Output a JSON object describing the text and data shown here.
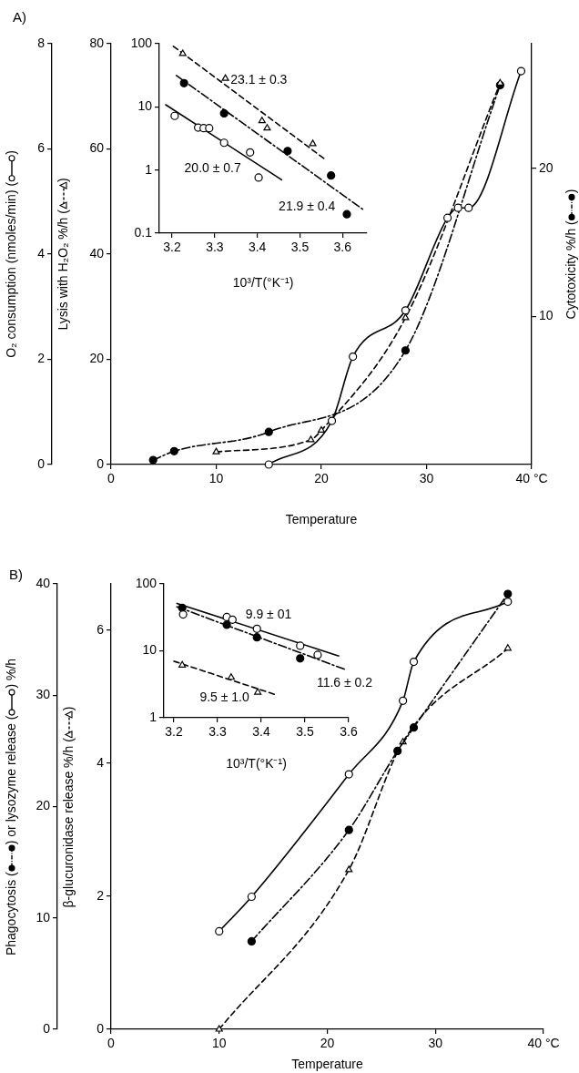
{
  "chart_data": [
    {
      "type": "line",
      "title": "A)",
      "xlabel": "Temperature",
      "ylabel": "Lysis with H₂O₂ %/h ( )",
      "y2label": "Cytotoxicity %/h ( )",
      "y3label": "O₂ consumption (nmoles/min) ( )",
      "xlim": [
        0,
        40
      ],
      "xticks": [
        0,
        10,
        20,
        30,
        {
          "value": 40,
          "label": "40 °C"
        }
      ],
      "ylim": [
        0,
        80
      ],
      "yticks": [
        0,
        20,
        40,
        60,
        80
      ],
      "y2lim": [
        0,
        28.4
      ],
      "y2ticks": [
        10,
        20
      ],
      "y3lim": [
        0,
        8
      ],
      "y3ticks": [
        0,
        2,
        4,
        6,
        8
      ],
      "series": [
        {
          "color": "#000000",
          "colors": [
            "#ffffff",
            "#ffffff",
            "#ffffff",
            "#ffffff",
            "#ffffff",
            "#ffffff",
            "#ffffff",
            "#ffffff"
          ],
          "axis": "y3",
          "marker": "circle",
          "line_style": "solid",
          "x": [
            15,
            21,
            23,
            28,
            32,
            33,
            34,
            39
          ],
          "values": [
            0,
            0.83,
            2.05,
            2.93,
            4.69,
            4.88,
            4.88,
            7.48
          ]
        },
        {
          "color": "#000000",
          "colors": [
            "#ffffff",
            "#ffffff",
            "#ffffff",
            "#ffffff",
            "#ffffff"
          ],
          "axis": "y",
          "marker": "triangle",
          "line_style": "dashed",
          "x": [
            10,
            19,
            20,
            28,
            37
          ],
          "values": [
            2.4,
            4.7,
            6.5,
            27.9,
            72.5
          ]
        },
        {
          "color": "#000000",
          "axis": "y2",
          "marker": "circle",
          "line_style": "dashdot",
          "x": [
            4,
            6,
            15,
            28,
            37
          ],
          "values": [
            0.3,
            0.9,
            2.2,
            7.7,
            25.6
          ]
        }
      ]
    },
    {
      "type": "scatter",
      "xlabel": "10³/T(°K⁻¹)",
      "log": "y",
      "xlim": [
        3.17,
        3.657
      ],
      "xticks": [
        3.2,
        3.3,
        3.4,
        3.5,
        3.6
      ],
      "ylim": [
        0.1,
        100
      ],
      "yticks": [
        0.1,
        1,
        10,
        100
      ],
      "series": [
        {
          "color": "#000000",
          "colors": [
            "#ffffff",
            "#ffffff",
            "#ffffff",
            "#ffffff",
            "#ffffff"
          ],
          "marker": "triangle",
          "x": [
            3.225,
            3.325,
            3.411,
            3.423,
            3.53
          ],
          "values": [
            69.5,
            28.2,
            6,
            4.6,
            2.6
          ]
        },
        {
          "color": "#000000",
          "marker": "circle",
          "x": [
            3.228,
            3.322,
            3.471,
            3.573,
            3.61
          ],
          "values": [
            23.7,
            7.9,
            2,
            0.82,
            0.2
          ]
        },
        {
          "color": "#000000",
          "colors": [
            "#ffffff",
            "#ffffff",
            "#ffffff",
            "#ffffff",
            "#ffffff",
            "#ffffff",
            "#ffffff"
          ],
          "marker": "circle",
          "x": [
            3.206,
            3.261,
            3.274,
            3.287,
            3.322,
            3.383,
            3.403
          ],
          "values": [
            7.2,
            4.7,
            4.6,
            4.6,
            2.7,
            1.9,
            0.76
          ]
        },
        {
          "type": "line",
          "color": "#000000",
          "marker": "none",
          "line_style": "dashed",
          "x": [
            3.203,
            3.56
          ],
          "values": [
            91,
            1.46
          ]
        },
        {
          "type": "line",
          "color": "#000000",
          "marker": "none",
          "line_style": "dashdot",
          "x": [
            3.21,
            3.647
          ],
          "values": [
            31.4,
            0.24
          ]
        },
        {
          "type": "line",
          "color": "#000000",
          "marker": "none",
          "line_style": "solid",
          "x": [
            3.185,
            3.457
          ],
          "values": [
            10.8,
            0.7
          ]
        }
      ],
      "annotations": [
        "23.1 ± 0.3",
        "20.0 ± 0.7",
        "21.9 ± 0.4"
      ]
    },
    {
      "type": "line",
      "title": "B)",
      "xlabel": "Temperature",
      "ylabel": "β-glucuronidase release %/h ( )",
      "y3label": "Phagocytosis ( ) or lysozyme release ( ) %/h",
      "xlim": [
        0,
        40
      ],
      "xticks": [
        0,
        10,
        20,
        30,
        {
          "value": 40,
          "label": "40 °C"
        }
      ],
      "ylim": [
        0,
        6.7
      ],
      "yticks": [
        0,
        2,
        4,
        6
      ],
      "y3lim": [
        0,
        40
      ],
      "y3ticks": [
        0,
        10,
        20,
        30,
        40
      ],
      "series": [
        {
          "color": "#000000",
          "axis": "y3",
          "marker": "circle",
          "line_style": "dashdot",
          "x": [
            13,
            22,
            26.5,
            28,
            36.7
          ],
          "values": [
            7.9,
            17.9,
            25,
            27.1,
            39.1
          ]
        },
        {
          "color": "#000000",
          "colors": [
            "#ffffff",
            "#ffffff",
            "#ffffff",
            "#ffffff",
            "#ffffff",
            "#ffffff"
          ],
          "axis": "y3",
          "marker": "circle",
          "line_style": "solid",
          "x": [
            10,
            13,
            22,
            27,
            28,
            36.7
          ],
          "values": [
            8.8,
            11.9,
            22.9,
            29.5,
            33,
            38.4
          ]
        },
        {
          "color": "#000000",
          "colors": [
            "#ffffff",
            "#ffffff",
            "#ffffff",
            "#ffffff"
          ],
          "axis": "y",
          "marker": "triangle",
          "line_style": "dashed",
          "x": [
            10,
            22,
            27,
            36.7
          ],
          "values": [
            0,
            2.4,
            4.32,
            5.73
          ]
        }
      ]
    },
    {
      "type": "scatter",
      "xlabel": "10³/T(°K⁻¹)",
      "log": "y",
      "xlim": [
        3.177,
        3.6
      ],
      "xticks": [
        3.2,
        3.3,
        3.4,
        3.5,
        3.6
      ],
      "ylim": [
        1,
        100
      ],
      "yticks": [
        1,
        10,
        100
      ],
      "series": [
        {
          "color": "#000000",
          "colors": [
            "#ffffff",
            "#ffffff",
            "#ffffff",
            "#ffffff",
            "#ffffff",
            "#ffffff"
          ],
          "marker": "circle",
          "x": [
            3.221,
            3.321,
            3.334,
            3.39,
            3.489,
            3.529
          ],
          "values": [
            34.9,
            31.9,
            29.2,
            21.3,
            11.9,
            8.7
          ]
        },
        {
          "color": "#000000",
          "marker": "circle",
          "x": [
            3.219,
            3.321,
            3.39,
            3.489
          ],
          "values": [
            43.8,
            24.5,
            15.9,
            7.7
          ]
        },
        {
          "color": "#000000",
          "colors": [
            "#ffffff",
            "#ffffff",
            "#ffffff"
          ],
          "marker": "triangle",
          "x": [
            3.219,
            3.331,
            3.392
          ],
          "values": [
            6.1,
            4,
            2.4
          ]
        },
        {
          "type": "line",
          "color": "#000000",
          "marker": "none",
          "line_style": "solid",
          "x": [
            3.207,
            3.577
          ],
          "values": [
            51.1,
            8.4
          ]
        },
        {
          "type": "line",
          "color": "#000000",
          "marker": "none",
          "line_style": "dashdot",
          "x": [
            3.207,
            3.594
          ],
          "values": [
            45.5,
            5.2
          ]
        },
        {
          "type": "line",
          "color": "#000000",
          "marker": "none",
          "line_style": "dashed",
          "x": [
            3.2,
            3.434
          ],
          "values": [
            7,
            2.2
          ]
        }
      ],
      "annotations": [
        "9.9 ± 01",
        "11.6 ± 0.2",
        "9.5 ± 1.0"
      ]
    }
  ]
}
